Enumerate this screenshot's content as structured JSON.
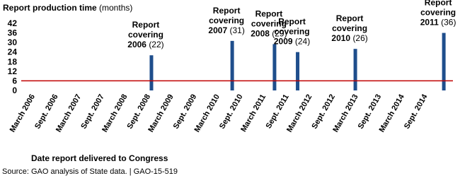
{
  "chart_data": {
    "type": "bar",
    "title": "Report production time",
    "y_unit": "(months)",
    "xlabel": "Date report delivered to Congress",
    "source": "Source: GAO analysis of State data.  |  GAO-15-519",
    "annotation_lines": [
      "Report",
      "covering"
    ],
    "categories": [
      "2006",
      "2007",
      "2008",
      "2009",
      "2010",
      "2011"
    ],
    "x": [
      "2008-10",
      "2010-07",
      "2011-06",
      "2011-12",
      "2013-03",
      "2015-02"
    ],
    "values": [
      22,
      31,
      29,
      24,
      26,
      36
    ],
    "value_labels": [
      "(22)",
      "(31)",
      "(29)",
      "(24)",
      "(26)",
      "(36)"
    ],
    "color": "#1f4e8c",
    "reference_line": {
      "value": 6,
      "color": "#c00000"
    },
    "ylim": [
      0,
      42
    ],
    "yticks": [
      0,
      6,
      12,
      18,
      24,
      30,
      36,
      42
    ],
    "xlim": [
      "2006-02",
      "2015-04"
    ],
    "xticks": [
      {
        "value": "2006-03",
        "label": "March 2006"
      },
      {
        "value": "2006-09",
        "label": "Sept. 2006"
      },
      {
        "value": "2007-03",
        "label": "March 2007"
      },
      {
        "value": "2007-09",
        "label": "Sept. 2007"
      },
      {
        "value": "2008-03",
        "label": "March 2008"
      },
      {
        "value": "2008-09",
        "label": "Sept. 2008"
      },
      {
        "value": "2009-03",
        "label": "March 2009"
      },
      {
        "value": "2009-09",
        "label": "Sept. 2009"
      },
      {
        "value": "2010-03",
        "label": "March 2010"
      },
      {
        "value": "2010-09",
        "label": "Sept. 2010"
      },
      {
        "value": "2011-03",
        "label": "March 2011"
      },
      {
        "value": "2011-09",
        "label": "Sept. 2011"
      },
      {
        "value": "2012-03",
        "label": "March 2012"
      },
      {
        "value": "2012-09",
        "label": "Sept. 2012"
      },
      {
        "value": "2013-03",
        "label": "March 2013"
      },
      {
        "value": "2013-09",
        "label": "Sept. 2013"
      },
      {
        "value": "2014-03",
        "label": "March 2014"
      },
      {
        "value": "2014-09",
        "label": "Sept. 2014"
      }
    ]
  }
}
